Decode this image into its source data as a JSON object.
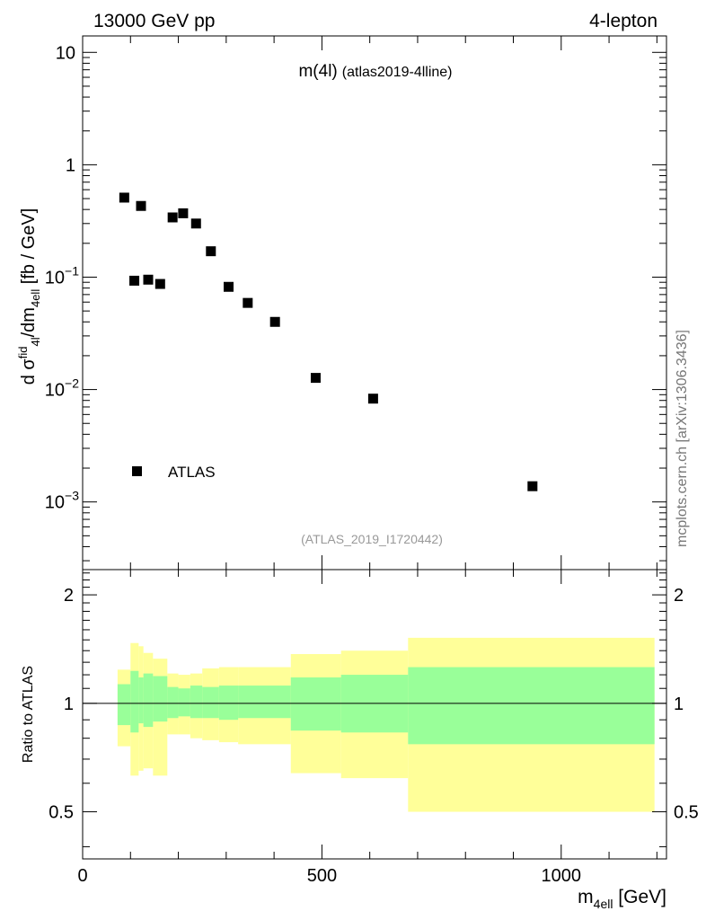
{
  "header": {
    "left_label": "13000 GeV pp",
    "right_label": "4-lepton",
    "side_label": "mcplots.cern.ch [arXiv:1306.3436]"
  },
  "chart_data": [
    {
      "type": "scatter",
      "title_main": "m(4l)",
      "title_sub": "(atlas2019-4lline)",
      "analysis_label": "(ATLAS_2019_I1720442)",
      "ylabel_parts": [
        "d σ",
        "fid",
        "4l",
        "/dm",
        "4ell",
        " [fb / GeV]"
      ],
      "ylog": true,
      "xlim": [
        0,
        1220
      ],
      "ylim": [
        0.00025,
        14
      ],
      "y_tick_labels": [
        {
          "value": 10,
          "base": "10",
          "exp": ""
        },
        {
          "value": 1,
          "base": "1",
          "exp": ""
        },
        {
          "value": 0.1,
          "base": "10",
          "exp": "−1"
        },
        {
          "value": 0.01,
          "base": "10",
          "exp": "−2"
        },
        {
          "value": 0.001,
          "base": "10",
          "exp": "−3"
        }
      ],
      "legend": [
        {
          "name": "ATLAS",
          "marker": "square",
          "color": "#000000"
        }
      ],
      "series": [
        {
          "name": "ATLAS",
          "x": [
            87,
            108,
            122,
            137,
            162,
            188,
            210,
            237,
            268,
            305,
            345,
            402,
            487,
            607,
            940
          ],
          "y": [
            0.51,
            0.093,
            0.43,
            0.095,
            0.087,
            0.34,
            0.37,
            0.3,
            0.17,
            0.082,
            0.059,
            0.04,
            0.0127,
            0.0083,
            0.00138
          ]
        }
      ]
    },
    {
      "type": "area",
      "ylabel": "Ratio to ATLAS",
      "xlabel_base": "m",
      "xlabel_sub": "4ell",
      "xlabel_unit": " [GeV]",
      "xlim": [
        0,
        1220
      ],
      "ylim": [
        0.37,
        2.35
      ],
      "x_tick_labels": [
        0,
        500,
        1000
      ],
      "y_tick_labels": [
        "0.5",
        "1",
        "2"
      ],
      "y_tick_values": [
        0.5,
        1,
        2
      ],
      "reference_line": 1,
      "bins": [
        {
          "lo": 73,
          "hi": 100,
          "inner": [
            0.87,
            1.13
          ],
          "outer": [
            0.76,
            1.24
          ]
        },
        {
          "lo": 100,
          "hi": 117,
          "inner": [
            0.83,
            1.23
          ],
          "outer": [
            0.63,
            1.47
          ]
        },
        {
          "lo": 117,
          "hi": 127,
          "inner": [
            0.88,
            1.18
          ],
          "outer": [
            0.65,
            1.44
          ]
        },
        {
          "lo": 127,
          "hi": 147,
          "inner": [
            0.86,
            1.21
          ],
          "outer": [
            0.66,
            1.38
          ]
        },
        {
          "lo": 147,
          "hi": 177,
          "inner": [
            0.89,
            1.19
          ],
          "outer": [
            0.63,
            1.33
          ]
        },
        {
          "lo": 177,
          "hi": 200,
          "inner": [
            0.91,
            1.11
          ],
          "outer": [
            0.82,
            1.21
          ]
        },
        {
          "lo": 200,
          "hi": 225,
          "inner": [
            0.92,
            1.1
          ],
          "outer": [
            0.82,
            1.2
          ]
        },
        {
          "lo": 225,
          "hi": 250,
          "inner": [
            0.91,
            1.12
          ],
          "outer": [
            0.8,
            1.21
          ]
        },
        {
          "lo": 250,
          "hi": 285,
          "inner": [
            0.91,
            1.11
          ],
          "outer": [
            0.79,
            1.25
          ]
        },
        {
          "lo": 285,
          "hi": 325,
          "inner": [
            0.9,
            1.12
          ],
          "outer": [
            0.78,
            1.26
          ]
        },
        {
          "lo": 325,
          "hi": 435,
          "inner": [
            0.91,
            1.12
          ],
          "outer": [
            0.77,
            1.26
          ]
        },
        {
          "lo": 435,
          "hi": 540,
          "inner": [
            0.84,
            1.18
          ],
          "outer": [
            0.64,
            1.37
          ]
        },
        {
          "lo": 540,
          "hi": 680,
          "inner": [
            0.83,
            1.2
          ],
          "outer": [
            0.62,
            1.4
          ]
        },
        {
          "lo": 680,
          "hi": 1195,
          "inner": [
            0.77,
            1.26
          ],
          "outer": [
            0.5,
            1.52
          ]
        }
      ]
    }
  ]
}
